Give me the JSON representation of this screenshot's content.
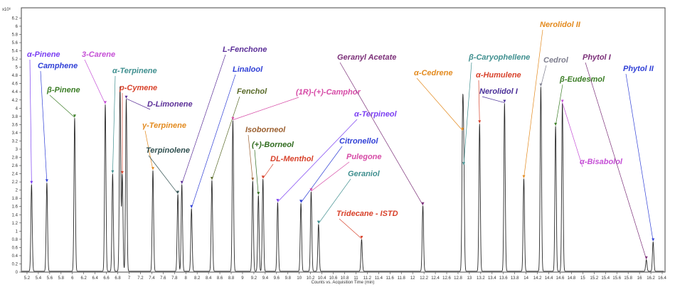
{
  "chart_data": {
    "type": "line",
    "scale_label": "x10⁶",
    "xlabel": "Counts vs. Acquisition Time (min)",
    "xlim": [
      5.1,
      16.45
    ],
    "ylim": [
      0,
      6.45
    ],
    "x_ticks": [
      "5.2",
      "5.4",
      "5.6",
      "5.8",
      "6",
      "6.2",
      "6.4",
      "6.6",
      "6.8",
      "7",
      "7.2",
      "7.4",
      "7.6",
      "7.8",
      "8",
      "8.2",
      "8.4",
      "8.6",
      "8.8",
      "9",
      "9.2",
      "9.4",
      "9.6",
      "9.8",
      "10",
      "10.2",
      "10.4",
      "10.6",
      "10.8",
      "11",
      "11.2",
      "11.4",
      "11.6",
      "11.8",
      "12",
      "12.2",
      "12.4",
      "12.6",
      "12.8",
      "13",
      "13.2",
      "13.4",
      "13.6",
      "13.8",
      "14",
      "14.2",
      "14.4",
      "14.6",
      "14.8",
      "15",
      "15.2",
      "15.4",
      "15.6",
      "15.8",
      "16",
      "16.2",
      "16.4"
    ],
    "y_ticks": [
      "0",
      "0.2",
      "0.4",
      "0.6",
      "0.8",
      "1",
      "1.2",
      "1.4",
      "1.6",
      "1.8",
      "2",
      "2.2",
      "2.4",
      "2.6",
      "2.8",
      "3",
      "3.2",
      "3.4",
      "3.6",
      "3.8",
      "4",
      "4.2",
      "4.4",
      "4.6",
      "4.8",
      "5",
      "5.2",
      "5.4",
      "5.6",
      "5.8",
      "6",
      "6.2"
    ],
    "peaks": [
      {
        "x": 5.28,
        "y": 2.12
      },
      {
        "x": 5.55,
        "y": 2.16
      },
      {
        "x": 6.04,
        "y": 3.74
      },
      {
        "x": 6.58,
        "y": 4.07
      },
      {
        "x": 6.71,
        "y": 2.38
      },
      {
        "x": 6.84,
        "y": 4.5
      },
      {
        "x": 6.88,
        "y": 2.36
      },
      {
        "x": 6.95,
        "y": 4.2
      },
      {
        "x": 7.42,
        "y": 2.46
      },
      {
        "x": 7.86,
        "y": 1.88
      },
      {
        "x": 7.93,
        "y": 2.12
      },
      {
        "x": 8.1,
        "y": 1.53
      },
      {
        "x": 8.46,
        "y": 2.22
      },
      {
        "x": 8.83,
        "y": 3.68
      },
      {
        "x": 9.18,
        "y": 2.2
      },
      {
        "x": 9.28,
        "y": 1.85
      },
      {
        "x": 9.36,
        "y": 2.25
      },
      {
        "x": 9.62,
        "y": 1.68
      },
      {
        "x": 10.03,
        "y": 1.66
      },
      {
        "x": 10.21,
        "y": 1.94
      },
      {
        "x": 10.34,
        "y": 1.15
      },
      {
        "x": 11.1,
        "y": 0.78
      },
      {
        "x": 12.18,
        "y": 1.6
      },
      {
        "x": 12.88,
        "y": 3.42
      },
      {
        "x": 12.9,
        "y": 2.58
      },
      {
        "x": 13.18,
        "y": 3.6
      },
      {
        "x": 13.62,
        "y": 4.1
      },
      {
        "x": 13.96,
        "y": 2.26
      },
      {
        "x": 14.26,
        "y": 4.5
      },
      {
        "x": 14.52,
        "y": 3.54
      },
      {
        "x": 14.64,
        "y": 4.1
      },
      {
        "x": 16.12,
        "y": 0.28
      },
      {
        "x": 16.24,
        "y": 0.72
      }
    ],
    "annotations": [
      {
        "label": "α-Pinene",
        "x": 5.28,
        "y": 2.12,
        "color": "#7b3ff2"
      },
      {
        "label": "Camphene",
        "x": 5.55,
        "y": 2.16,
        "color": "#2f3fd6"
      },
      {
        "label": "β-Pinene",
        "x": 6.04,
        "y": 3.74,
        "color": "#3b7d26"
      },
      {
        "label": "3-Carene",
        "x": 6.58,
        "y": 4.07,
        "color": "#c54fd6"
      },
      {
        "label": "α-Terpinene",
        "x": 6.71,
        "y": 2.38,
        "color": "#3f8f8f"
      },
      {
        "label": "p-Cymene",
        "x": 6.88,
        "y": 2.36,
        "color": "#d8422b"
      },
      {
        "label": "D-Limonene",
        "x": 6.95,
        "y": 4.2,
        "color": "#5b2f98"
      },
      {
        "label": "γ-Terpinene",
        "x": 7.42,
        "y": 2.46,
        "color": "#e38a1e"
      },
      {
        "label": "Terpinolene",
        "x": 7.86,
        "y": 1.88,
        "color": "#2f4f4f"
      },
      {
        "label": "L-Fenchone",
        "x": 7.93,
        "y": 2.12,
        "color": "#5b2f98"
      },
      {
        "label": "Linalool",
        "x": 8.1,
        "y": 1.53,
        "color": "#2f3fd6"
      },
      {
        "label": "Fenchol",
        "x": 8.46,
        "y": 2.22,
        "color": "#5a6b2a"
      },
      {
        "label": "(1R)-(+)-Camphor",
        "x": 8.83,
        "y": 3.68,
        "color": "#d64aa6"
      },
      {
        "label": "Isoborneol",
        "x": 9.18,
        "y": 2.2,
        "color": "#9b5f2f"
      },
      {
        "label": "(+)-Borneol",
        "x": 9.28,
        "y": 1.85,
        "color": "#2f6b1e"
      },
      {
        "label": "DL-Menthol",
        "x": 9.36,
        "y": 2.25,
        "color": "#d8422b"
      },
      {
        "label": "α-Terpineol",
        "x": 9.62,
        "y": 1.68,
        "color": "#7b3ff2"
      },
      {
        "label": "Citronellol",
        "x": 10.03,
        "y": 1.66,
        "color": "#2f3fd6"
      },
      {
        "label": "Pulegone",
        "x": 10.21,
        "y": 1.94,
        "color": "#d64aa6"
      },
      {
        "label": "Geraniol",
        "x": 10.34,
        "y": 1.15,
        "color": "#3f8f8f"
      },
      {
        "label": "Tridecane - ISTD",
        "x": 11.1,
        "y": 0.78,
        "color": "#d8422b"
      },
      {
        "label": "Geranyl Acetate",
        "x": 12.18,
        "y": 1.6,
        "color": "#7b2f78"
      },
      {
        "label": "α-Cedrene",
        "x": 12.88,
        "y": 3.42,
        "color": "#e38a1e"
      },
      {
        "label": "β-Caryophellene",
        "x": 12.9,
        "y": 2.58,
        "color": "#3f8f8f"
      },
      {
        "label": "α-Humulene",
        "x": 13.18,
        "y": 3.6,
        "color": "#d8422b"
      },
      {
        "label": "Nerolidol I",
        "x": 13.62,
        "y": 4.1,
        "color": "#4a2f98"
      },
      {
        "label": "Nerolidol II",
        "x": 13.96,
        "y": 2.26,
        "color": "#e38a1e"
      },
      {
        "label": "Cedrol",
        "x": 14.26,
        "y": 4.5,
        "color": "#7f7f8f"
      },
      {
        "label": "β-Eudesmol",
        "x": 14.52,
        "y": 3.54,
        "color": "#3b7d26"
      },
      {
        "label": "α-Bisabolol",
        "x": 14.64,
        "y": 4.1,
        "color": "#c54fd6"
      },
      {
        "label": "Phytol I",
        "x": 16.12,
        "y": 0.28,
        "color": "#7b2f78"
      },
      {
        "label": "Phytol II",
        "x": 16.24,
        "y": 0.72,
        "color": "#2f3fd6"
      }
    ]
  }
}
